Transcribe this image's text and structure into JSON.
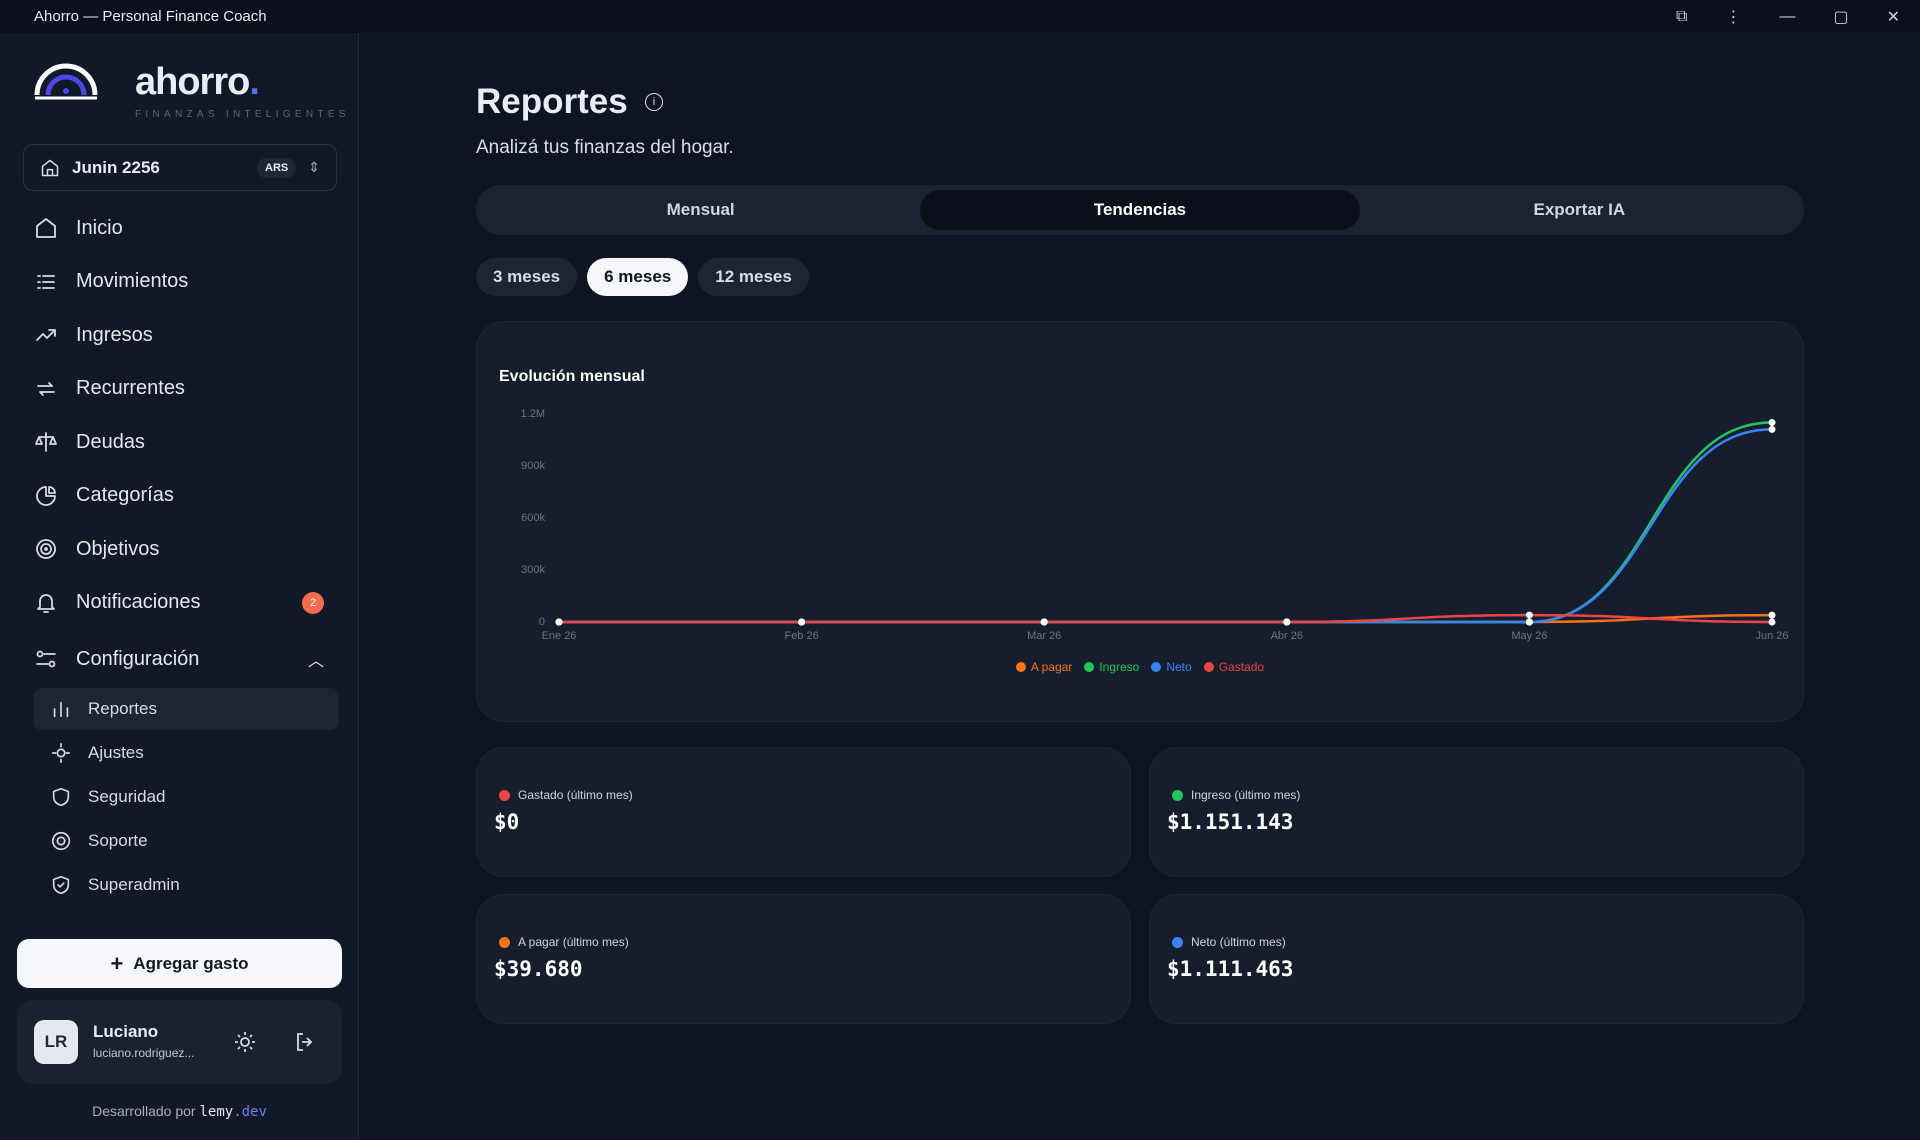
{
  "window": {
    "title": "Ahorro — Personal Finance Coach"
  },
  "sidebar": {
    "brand": "ahorro",
    "brand_dot": ".",
    "tagline": "FINANZAS INTELIGENTES",
    "household": "Junin 2256",
    "currency": "ARS",
    "nav": [
      "Inicio",
      "Movimientos",
      "Ingresos",
      "Recurrentes",
      "Deudas",
      "Categorías",
      "Objetivos",
      "Notificaciones"
    ],
    "notifications_badge": 2,
    "config": "Configuración",
    "subnav": [
      "Reportes",
      "Ajustes",
      "Seguridad",
      "Soporte",
      "Superadmin"
    ],
    "add_button": "Agregar gasto",
    "user": {
      "initials": "LR",
      "name": "Luciano",
      "email": "luciano.rodriguez..."
    },
    "footer_prefix": "Desarrollado por",
    "footer_brand": "lemy",
    "footer_suffix": ".dev"
  },
  "header": {
    "title": "Reportes",
    "subtitle": "Analizá tus finanzas del hogar."
  },
  "tabs": [
    "Mensual",
    "Tendencias",
    "Exportar IA"
  ],
  "periods": [
    "3 meses",
    "6 meses",
    "12 meses"
  ],
  "chart_data": {
    "type": "line",
    "title": "Evolución mensual",
    "categories": [
      "Ene 26",
      "Feb 26",
      "Mar 26",
      "Abr 26",
      "May 26",
      "Jun 26"
    ],
    "series": [
      {
        "name": "A pagar",
        "color": "#f97316",
        "values": [
          0,
          0,
          0,
          0,
          0,
          39680
        ]
      },
      {
        "name": "Ingreso",
        "color": "#22c55e",
        "values": [
          0,
          0,
          0,
          0,
          0,
          1151143
        ]
      },
      {
        "name": "Neto",
        "color": "#3b82f6",
        "values": [
          0,
          0,
          0,
          0,
          0,
          1111463
        ]
      },
      {
        "name": "Gastado",
        "color": "#ef4444",
        "values": [
          0,
          0,
          0,
          0,
          40000,
          0
        ]
      }
    ],
    "ylim": [
      0,
      1200000
    ],
    "yticks": [
      0,
      {
        "value": 300000,
        "label": "300k"
      },
      {
        "value": 600000,
        "label": "600k"
      },
      {
        "value": 900000,
        "label": "900k"
      },
      {
        "value": 1200000,
        "label": "1.2M"
      }
    ],
    "grid": false
  },
  "stats": [
    {
      "label": "Gastado (último mes)",
      "value": "$0"
    },
    {
      "label": "Ingreso (último mes)",
      "value": "$1.151.143"
    },
    {
      "label": "A pagar (último mes)",
      "value": "$39.680"
    },
    {
      "label": "Neto (último mes)",
      "value": "$1.111.463"
    }
  ]
}
